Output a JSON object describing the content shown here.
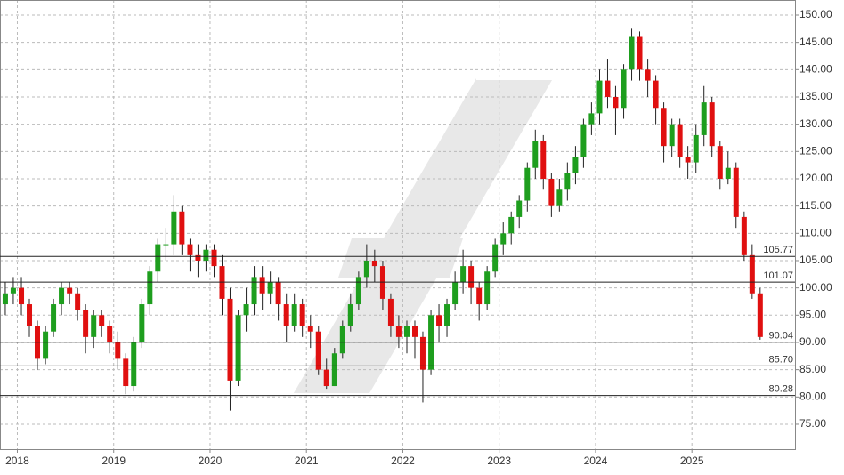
{
  "chart_data": {
    "type": "candlestick",
    "x": [
      2017.875,
      2017.958,
      2018.042,
      2018.125,
      2018.208,
      2018.292,
      2018.375,
      2018.458,
      2018.542,
      2018.625,
      2018.708,
      2018.792,
      2018.875,
      2018.958,
      2019.042,
      2019.125,
      2019.208,
      2019.292,
      2019.375,
      2019.458,
      2019.542,
      2019.625,
      2019.708,
      2019.792,
      2019.875,
      2019.958,
      2020.042,
      2020.125,
      2020.208,
      2020.292,
      2020.375,
      2020.458,
      2020.542,
      2020.625,
      2020.708,
      2020.792,
      2020.875,
      2020.958,
      2021.042,
      2021.125,
      2021.208,
      2021.292,
      2021.375,
      2021.458,
      2021.542,
      2021.625,
      2021.708,
      2021.792,
      2021.875,
      2021.958,
      2022.042,
      2022.125,
      2022.208,
      2022.292,
      2022.375,
      2022.458,
      2022.542,
      2022.625,
      2022.708,
      2022.792,
      2022.875,
      2022.958,
      2023.042,
      2023.125,
      2023.208,
      2023.292,
      2023.375,
      2023.458,
      2023.542,
      2023.625,
      2023.708,
      2023.792,
      2023.875,
      2023.958,
      2024.042,
      2024.125,
      2024.208,
      2024.292,
      2024.375,
      2024.458,
      2024.542,
      2024.625,
      2024.708,
      2024.792,
      2024.875,
      2024.958,
      2025.042,
      2025.125,
      2025.208,
      2025.292,
      2025.375,
      2025.458,
      2025.542,
      2025.625,
      2025.708
    ],
    "open": [
      97,
      99,
      100,
      97,
      93,
      87,
      92,
      97,
      100,
      99,
      96,
      91,
      95,
      93,
      90,
      87,
      82,
      90,
      97,
      103,
      108,
      108,
      114,
      108,
      106,
      105,
      107,
      104,
      98,
      83,
      95,
      97,
      102,
      99,
      101,
      97,
      93,
      97,
      93,
      92,
      85,
      82,
      88,
      93,
      97,
      102,
      105,
      104,
      98,
      93,
      91,
      93,
      91,
      85,
      95,
      93,
      97,
      101,
      104,
      100,
      97,
      103,
      108,
      110,
      113,
      116,
      122,
      127,
      120,
      115,
      118,
      121,
      124,
      130,
      132,
      138,
      135,
      133,
      140,
      146,
      140,
      138,
      133,
      126,
      130,
      124,
      123,
      128,
      134,
      126,
      120,
      122,
      113,
      106,
      99
    ],
    "high": [
      101,
      102,
      102,
      98,
      94,
      93,
      98,
      101,
      101,
      100,
      97,
      96,
      96,
      94,
      92,
      88,
      91,
      98,
      104,
      109,
      111,
      117,
      115,
      109,
      108,
      108,
      108,
      106,
      100,
      96,
      100,
      104,
      104,
      103,
      102,
      99,
      99,
      98,
      95,
      93,
      87,
      89,
      94,
      99,
      103,
      108,
      107,
      105,
      99,
      95,
      94,
      94,
      92,
      96,
      97,
      98,
      103,
      107,
      105,
      101,
      104,
      109,
      112,
      114,
      117,
      123,
      129,
      128,
      121,
      120,
      123,
      126,
      131,
      134,
      140,
      142,
      137,
      141,
      147.5,
      147,
      142,
      139,
      134,
      131,
      131,
      126,
      130,
      137,
      135,
      127,
      125,
      123,
      114,
      108,
      100
    ],
    "low": [
      95,
      97,
      95,
      91,
      85,
      86,
      91,
      95,
      97,
      94,
      88,
      89,
      91,
      88,
      85,
      80.5,
      81,
      89,
      95,
      101,
      105,
      106,
      106,
      103,
      102,
      103,
      102,
      95,
      77.5,
      82,
      92,
      95,
      96,
      97,
      94,
      90,
      92,
      91,
      89,
      84,
      81.5,
      82,
      87,
      92,
      96,
      100,
      101,
      96,
      91,
      89,
      88,
      87,
      79,
      84,
      90,
      91,
      96,
      99,
      97,
      94,
      96,
      102,
      106,
      108,
      111,
      114,
      120,
      118,
      113,
      114,
      116,
      119,
      122,
      128,
      130,
      133,
      128,
      131,
      138,
      138,
      135,
      130,
      123,
      124,
      122,
      120,
      121,
      126,
      124,
      118,
      119,
      111,
      105,
      98,
      90.5
    ],
    "close": [
      99,
      100,
      97,
      93,
      87,
      92,
      97,
      100,
      99,
      96,
      91,
      95,
      93,
      90,
      87,
      82,
      90,
      97,
      103,
      108,
      108,
      114,
      108,
      106,
      105,
      107,
      104,
      98,
      83,
      95,
      97,
      102,
      99,
      101,
      97,
      93,
      97,
      93,
      92,
      85,
      82,
      88,
      93,
      97,
      102,
      105,
      104,
      98,
      93,
      91,
      93,
      91,
      85,
      95,
      93,
      97,
      101,
      104,
      100,
      97,
      103,
      108,
      110,
      113,
      116,
      122,
      127,
      120,
      115,
      118,
      121,
      124,
      130,
      132,
      138,
      135,
      133,
      140,
      146,
      140,
      138,
      133,
      126,
      130,
      124,
      123,
      128,
      134,
      126,
      120,
      122,
      113,
      106,
      99,
      91
    ],
    "up_color": "#1e9e1e",
    "down_color": "#e01010",
    "xlim": [
      2017.82,
      2026.07
    ],
    "xticks": [
      2018,
      2019,
      2020,
      2021,
      2022,
      2023,
      2024,
      2025
    ],
    "ylim": [
      70.43,
      152.77
    ],
    "yticks": [
      {
        "value": 75,
        "label": "75.00"
      },
      {
        "value": 80,
        "label": "80.00"
      },
      {
        "value": 85,
        "label": "85.00"
      },
      {
        "value": 90,
        "label": "90.00"
      },
      {
        "value": 95,
        "label": "95.00"
      },
      {
        "value": 100,
        "label": "100.00"
      },
      {
        "value": 105,
        "label": "105.00"
      },
      {
        "value": 110,
        "label": "110.00"
      },
      {
        "value": 115,
        "label": "115.00"
      },
      {
        "value": 120,
        "label": "120.00"
      },
      {
        "value": 125,
        "label": "125.00"
      },
      {
        "value": 130,
        "label": "130.00"
      },
      {
        "value": 135,
        "label": "135.00"
      },
      {
        "value": 140,
        "label": "140.00"
      },
      {
        "value": 145,
        "label": "145.00"
      },
      {
        "value": 150,
        "label": "150.00"
      }
    ],
    "levels": [
      {
        "value": 105.77,
        "label": "105.77"
      },
      {
        "value": 101.07,
        "label": "101.07"
      },
      {
        "value": 90.04,
        "label": "90.04"
      },
      {
        "value": 85.7,
        "label": "85.70"
      },
      {
        "value": 80.28,
        "label": "80.28"
      }
    ],
    "grid": true
  }
}
